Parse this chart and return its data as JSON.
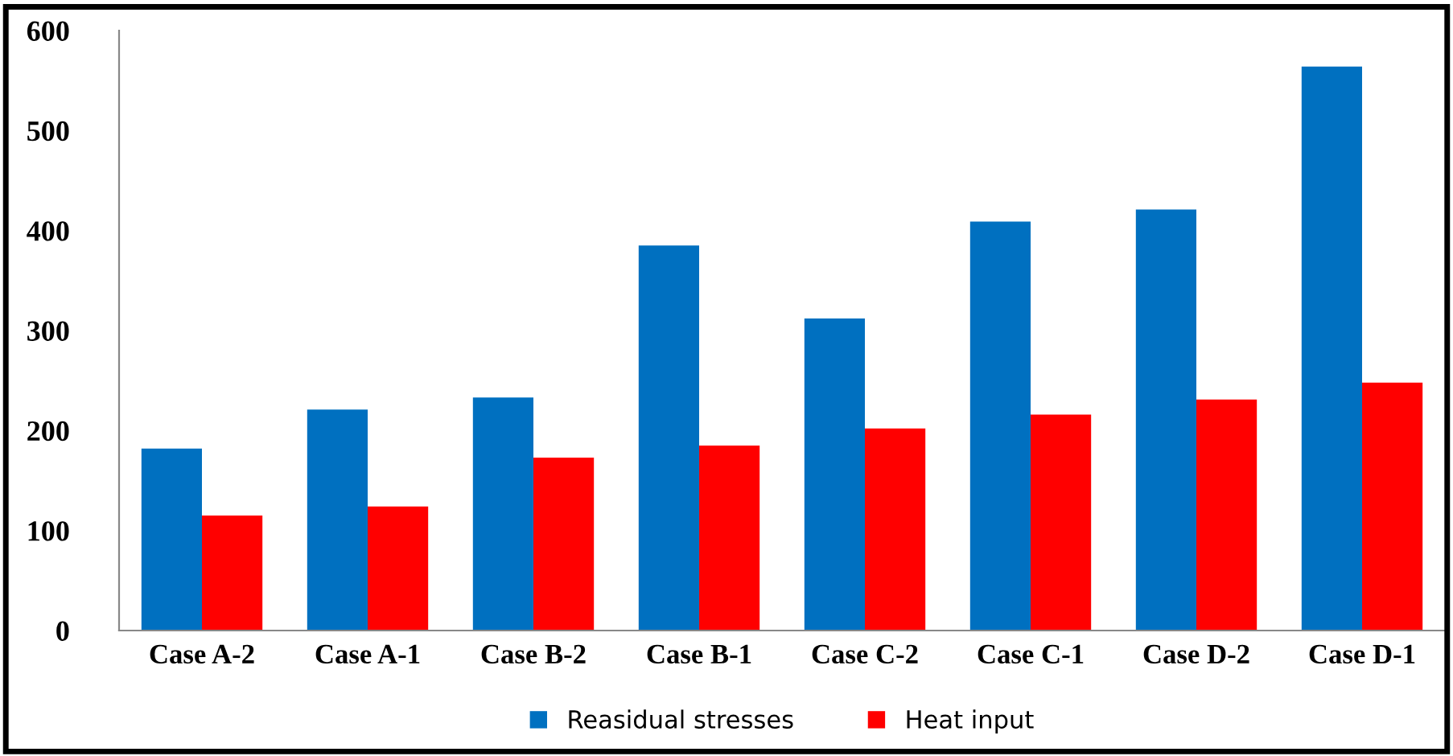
{
  "chart_data": {
    "type": "bar",
    "categories": [
      "Case A-2",
      "Case A-1",
      "Case B-2",
      "Case B-1",
      "Case C-2",
      "Case C-1",
      "Case D-2",
      "Case D-1"
    ],
    "series": [
      {
        "name": "Reasidual stresses",
        "color": "#0070c0",
        "values": [
          182,
          221,
          233,
          385,
          312,
          409,
          421,
          564
        ]
      },
      {
        "name": "Heat input",
        "color": "#ff0000",
        "values": [
          115,
          124,
          173,
          185,
          202,
          216,
          231,
          248
        ]
      }
    ],
    "ylim": [
      0,
      600
    ],
    "yticks": [
      0,
      100,
      200,
      300,
      400,
      500,
      600
    ],
    "grid": false,
    "legend": "bottom"
  }
}
